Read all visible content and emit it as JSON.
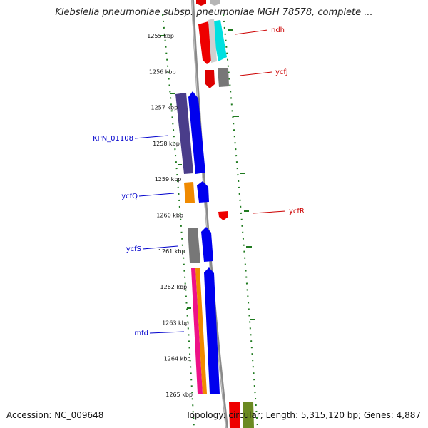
{
  "title": "Klebsiella pneumoniae subsp. pneumoniae MGH 78578, complete ...",
  "footer": {
    "accession": "Accession: NC_009648",
    "summary": "Topology: circular; Length: 5,315,120 bp; Genes: 4,887"
  },
  "colors": {
    "label_forward": "#cc0000",
    "label_reverse": "#0000cc",
    "gc_ticks": "#1f7a1f",
    "backbone": "#8c8c8c"
  },
  "map": {
    "unit": "kbp",
    "range_kbp": [
      1255,
      1265
    ],
    "scale_ticks": [
      {
        "kbp": 1255,
        "label": "1255 kbp"
      },
      {
        "kbp": 1256,
        "label": "1256 kbp"
      },
      {
        "kbp": 1257,
        "label": "1257 kbp"
      },
      {
        "kbp": 1258,
        "label": "1258 kbp"
      },
      {
        "kbp": 1259,
        "label": "1259 kbp"
      },
      {
        "kbp": 1260,
        "label": "1260 kbp"
      },
      {
        "kbp": 1261,
        "label": "1261 kbp"
      },
      {
        "kbp": 1262,
        "label": "1262 kbp"
      },
      {
        "kbp": 1263,
        "label": "1263 kbp"
      },
      {
        "kbp": 1264,
        "label": "1264 kbp"
      },
      {
        "kbp": 1265,
        "label": "1265 kbp"
      }
    ],
    "gene_labels": [
      {
        "text": "ndh",
        "strand": "forward"
      },
      {
        "text": "ycfJ",
        "strand": "forward"
      },
      {
        "text": "KPN_01108",
        "strand": "reverse"
      },
      {
        "text": "ycfQ",
        "strand": "reverse"
      },
      {
        "text": "ycfR",
        "strand": "forward"
      },
      {
        "text": "ycfS",
        "strand": "reverse"
      },
      {
        "text": "mfd",
        "strand": "reverse"
      }
    ]
  }
}
